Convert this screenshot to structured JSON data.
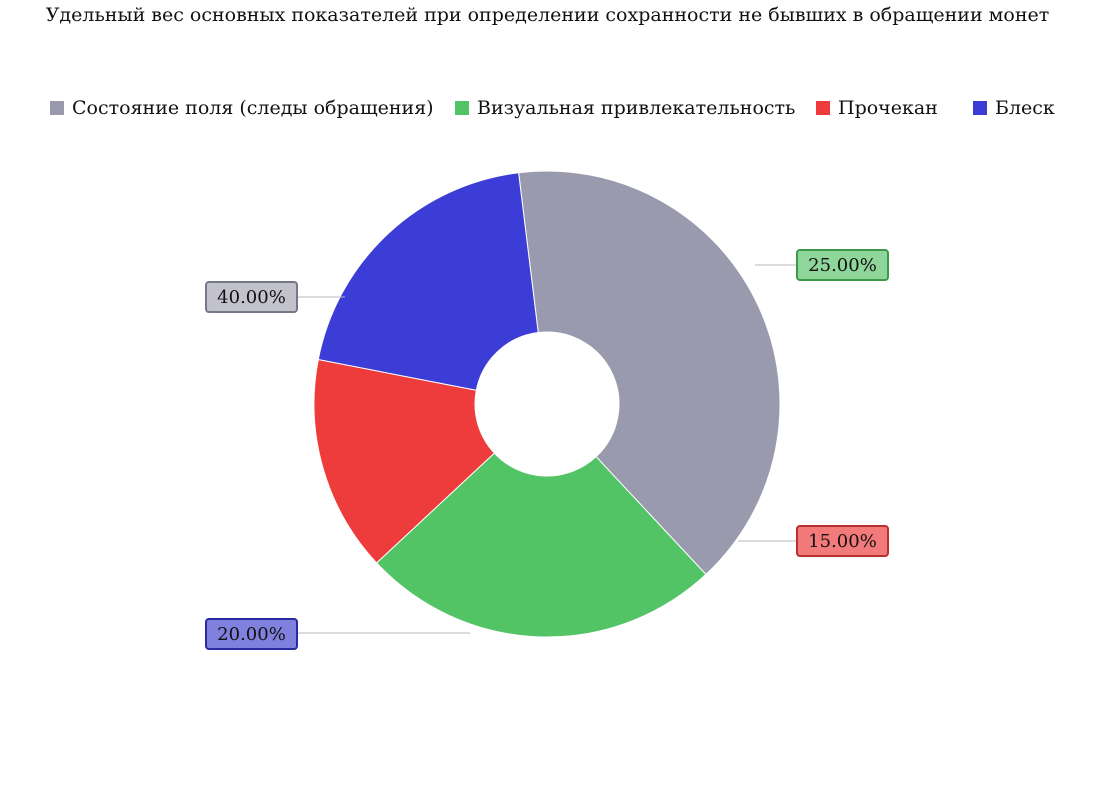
{
  "chart_data": {
    "type": "pie",
    "title": "Удельный вес основных показателей при определении сохранности не бывших в обращении монет",
    "categories": [
      "Состояние поля (следы обращения)",
      "Визуальная привлекательность",
      "Прочекан",
      "Блеск"
    ],
    "values": [
      40,
      25,
      15,
      20
    ],
    "value_labels": [
      "40.00%",
      "25.00%",
      "15.00%",
      "20.00%"
    ],
    "colors": [
      "#9a9aae",
      "#52c466",
      "#ee3b3b",
      "#3c3cd6"
    ],
    "label_colors": [
      "#c2c2cc",
      "#8fd69a",
      "#f27a7a",
      "#8080de"
    ],
    "label_borders": [
      "#77778c",
      "#3a9a4a",
      "#b83030",
      "#2a2aa0"
    ],
    "donut": true,
    "legend_position": "top",
    "grid": false
  }
}
